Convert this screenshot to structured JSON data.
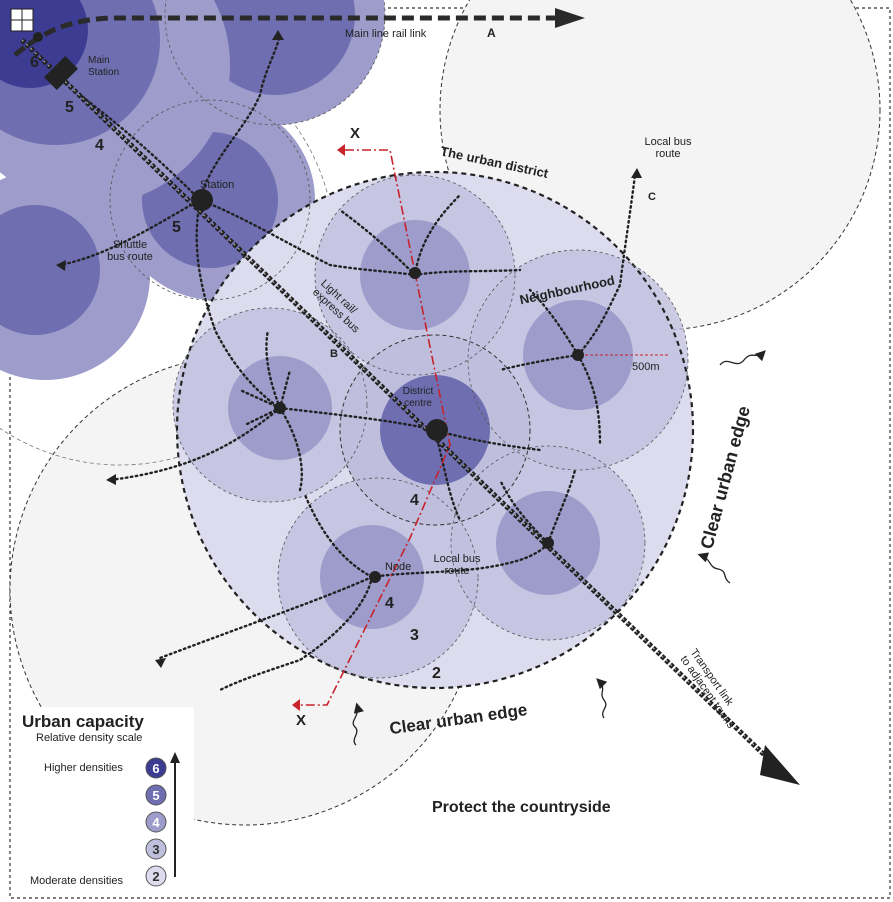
{
  "colors": {
    "d6": "#3c3d92",
    "d5": "#6e6eb1",
    "d4": "#9d9ccb",
    "d3": "#bfbedd",
    "d2": "#dcdcee",
    "countryside": "#f4f4f4",
    "red_section": "#c8222b",
    "outline": "#222222"
  },
  "labels": {
    "main_line": "Main line rail link",
    "main_line_letter": "A",
    "main_station": "Main\nStation",
    "station": "Station",
    "shuttle": "Shuttle\nbus route",
    "urban_district": "The urban district",
    "local_bus_top": "Local bus\nroute",
    "letter_c": "C",
    "neighbourhood": "Neighbourhood",
    "light_rail": "Light rail/\nexpress bus",
    "letter_b": "B",
    "radius": "500m",
    "district_centre": "District\ncentre",
    "node": "Node",
    "local_bus_bottom": "Local bus\nroute",
    "clear_edge_right": "Clear urban edge",
    "clear_edge_bottom": "Clear urban edge",
    "transport_link": "Transport link\nto adjacent towns",
    "protect": "Protect the countryside",
    "x_top": "X",
    "x_bottom": "X",
    "n6": "6",
    "n5_top": "5",
    "n4_top": "4",
    "n5_station": "5",
    "n4_centre": "4",
    "n4_node": "4",
    "n3": "3",
    "n2": "2"
  },
  "legend": {
    "title": "Urban capacity",
    "subtitle": "Relative density scale",
    "higher": "Higher densities",
    "moderate": "Moderate densities",
    "levels": [
      "6",
      "5",
      "4",
      "3",
      "2"
    ]
  }
}
